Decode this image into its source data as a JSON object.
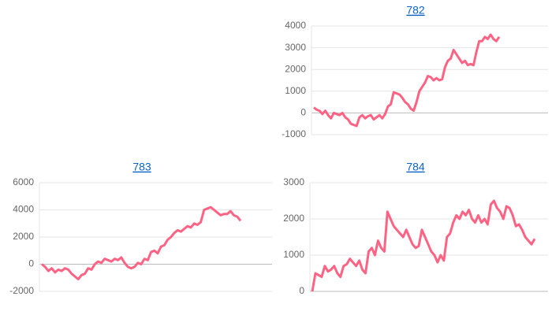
{
  "chart_data": [
    {
      "type": "line",
      "title": "782",
      "color": "#ff6384",
      "grid": true,
      "ylim": [
        -1000,
        4000
      ],
      "yticks": [
        -1000,
        0,
        1000,
        2000,
        3000,
        4000
      ],
      "values": [
        250,
        150,
        100,
        -50,
        100,
        -100,
        -250,
        0,
        -50,
        -100,
        0,
        -200,
        -300,
        -500,
        -550,
        -600,
        -200,
        -100,
        -250,
        -150,
        -100,
        -300,
        -200,
        -100,
        -250,
        -50,
        300,
        400,
        950,
        900,
        850,
        700,
        500,
        400,
        200,
        100,
        500,
        1000,
        1200,
        1400,
        1700,
        1650,
        1500,
        1600,
        1500,
        1550,
        2100,
        2400,
        2500,
        2900,
        2700,
        2500,
        2300,
        2400,
        2200,
        2250,
        2200,
        2800,
        3300,
        3300,
        3500,
        3400,
        3600,
        3400,
        3300,
        3500
      ]
    },
    {
      "type": "line",
      "title": "783",
      "color": "#ff6384",
      "grid": true,
      "ylim": [
        -2000,
        6000
      ],
      "yticks": [
        -2000,
        0,
        2000,
        4000,
        6000
      ],
      "values": [
        0,
        -200,
        -500,
        -300,
        -600,
        -400,
        -500,
        -300,
        -400,
        -700,
        -900,
        -1100,
        -800,
        -700,
        -300,
        -400,
        0,
        200,
        100,
        400,
        300,
        200,
        400,
        300,
        500,
        100,
        -200,
        -300,
        -200,
        100,
        0,
        400,
        300,
        900,
        1000,
        800,
        1300,
        1400,
        1800,
        2000,
        2300,
        2500,
        2400,
        2600,
        2800,
        2700,
        3000,
        2900,
        3100,
        4000,
        4100,
        4200,
        4000,
        3800,
        3600,
        3700,
        3700,
        3900,
        3600,
        3500,
        3200
      ]
    },
    {
      "type": "line",
      "title": "784",
      "color": "#ff6384",
      "grid": true,
      "ylim": [
        0,
        3000
      ],
      "yticks": [
        0,
        1000,
        2000,
        3000
      ],
      "values": [
        0,
        500,
        450,
        400,
        700,
        550,
        600,
        700,
        500,
        400,
        700,
        750,
        900,
        800,
        700,
        850,
        600,
        500,
        1100,
        1200,
        1000,
        1400,
        1200,
        1100,
        2200,
        2000,
        1800,
        1700,
        1600,
        1500,
        1700,
        1500,
        1300,
        1200,
        1250,
        1700,
        1500,
        1300,
        1100,
        1000,
        800,
        1000,
        850,
        1500,
        1600,
        1900,
        2100,
        2000,
        2200,
        2100,
        2250,
        2000,
        1900,
        2100,
        1900,
        2000,
        1850,
        2400,
        2500,
        2300,
        2200,
        2000,
        2350,
        2300,
        2100,
        1800,
        1850,
        1700,
        1500,
        1400,
        1300,
        1450
      ]
    }
  ]
}
